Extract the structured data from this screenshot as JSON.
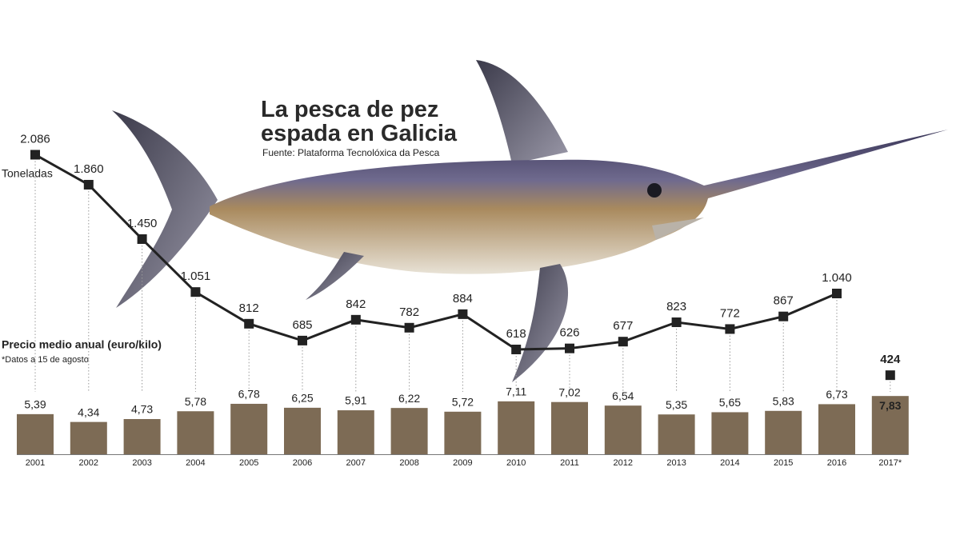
{
  "title": "La pesca de pez espada en Galicia",
  "source": "Fuente: Plataforma Tecnolóxica da Pesca",
  "note": "*Datos a 15 de agosto",
  "chart_data": [
    {
      "type": "line",
      "ylim": [
        0,
        2400
      ],
      "series": [
        {
          "name": "Toneladas",
          "color": "#222222",
          "values": [
            2086,
            1860,
            1450,
            1051,
            812,
            685,
            842,
            782,
            884,
            618,
            626,
            677,
            823,
            772,
            867,
            1040,
            null
          ],
          "value_labels": [
            "2.086",
            "1.860",
            "1.450",
            "1.051",
            "812",
            "685",
            "842",
            "782",
            "884",
            "618",
            "626",
            "677",
            "823",
            "772",
            "867",
            "1.040",
            null
          ]
        },
        {
          "color": "#222222",
          "values": [
            null,
            null,
            null,
            null,
            null,
            null,
            null,
            null,
            null,
            null,
            null,
            null,
            null,
            null,
            null,
            null,
            424
          ],
          "value_labels": [
            null,
            null,
            null,
            null,
            null,
            null,
            null,
            null,
            null,
            null,
            null,
            null,
            null,
            null,
            null,
            null,
            "424"
          ]
        }
      ]
    },
    {
      "type": "bar",
      "title": "Precio medio anual (euro/kilo)",
      "categories": [
        "2001",
        "2002",
        "2003",
        "2004",
        "2005",
        "2006",
        "2007",
        "2008",
        "2009",
        "2010",
        "2011",
        "2012",
        "2013",
        "2014",
        "2015",
        "2016",
        "2017*"
      ],
      "values": [
        5.39,
        4.34,
        4.73,
        5.78,
        6.78,
        6.25,
        5.91,
        6.22,
        5.72,
        7.11,
        7.02,
        6.54,
        5.35,
        5.65,
        5.83,
        6.73,
        7.83
      ],
      "value_labels": [
        "5,39",
        "4,34",
        "4,73",
        "5,78",
        "6,78",
        "6,25",
        "5,91",
        "6,22",
        "5,72",
        "7,11",
        "7,02",
        "6,54",
        "5,35",
        "5,65",
        "5,83",
        "6,73",
        "7,83"
      ],
      "color": "#7d6b55",
      "ylim": [
        0,
        8
      ]
    }
  ]
}
